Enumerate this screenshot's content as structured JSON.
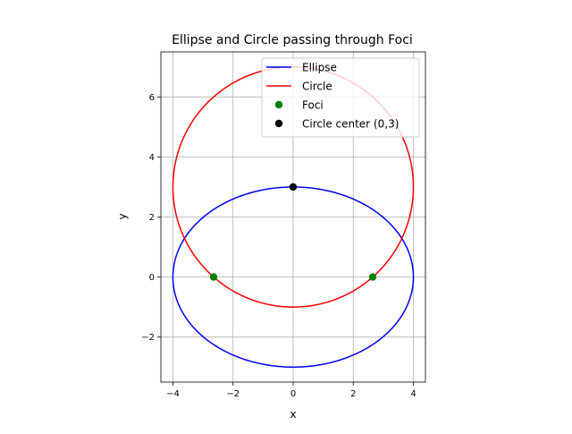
{
  "chart_data": {
    "type": "line",
    "title": "Ellipse and Circle passing through Foci",
    "xlabel": "x",
    "ylabel": "y",
    "xlim": [
      -4.4,
      4.4
    ],
    "ylim": [
      -3.5,
      7.5
    ],
    "xticks": [
      -4,
      -2,
      0,
      2,
      4
    ],
    "xtick_labels": [
      "−4",
      "−2",
      "0",
      "2",
      "4"
    ],
    "yticks": [
      -2,
      0,
      2,
      4,
      6
    ],
    "ytick_labels": [
      "−2",
      "0",
      "2",
      "4",
      "6"
    ],
    "grid": true,
    "legend_position": "top-right",
    "series": [
      {
        "name": "Ellipse",
        "kind": "ellipse",
        "center": [
          0,
          0
        ],
        "semi_axes": [
          4,
          3
        ],
        "color": "#0000ff"
      },
      {
        "name": "Circle",
        "kind": "circle",
        "center": [
          0,
          3
        ],
        "radius": 4,
        "color": "#ff0000"
      },
      {
        "name": "Foci",
        "kind": "scatter",
        "points": [
          [
            -2.6458,
            0
          ],
          [
            2.6458,
            0
          ]
        ],
        "color": "#008000"
      },
      {
        "name": "Circle center (0,3)",
        "kind": "scatter",
        "points": [
          [
            0,
            3
          ]
        ],
        "color": "#000000"
      }
    ]
  }
}
